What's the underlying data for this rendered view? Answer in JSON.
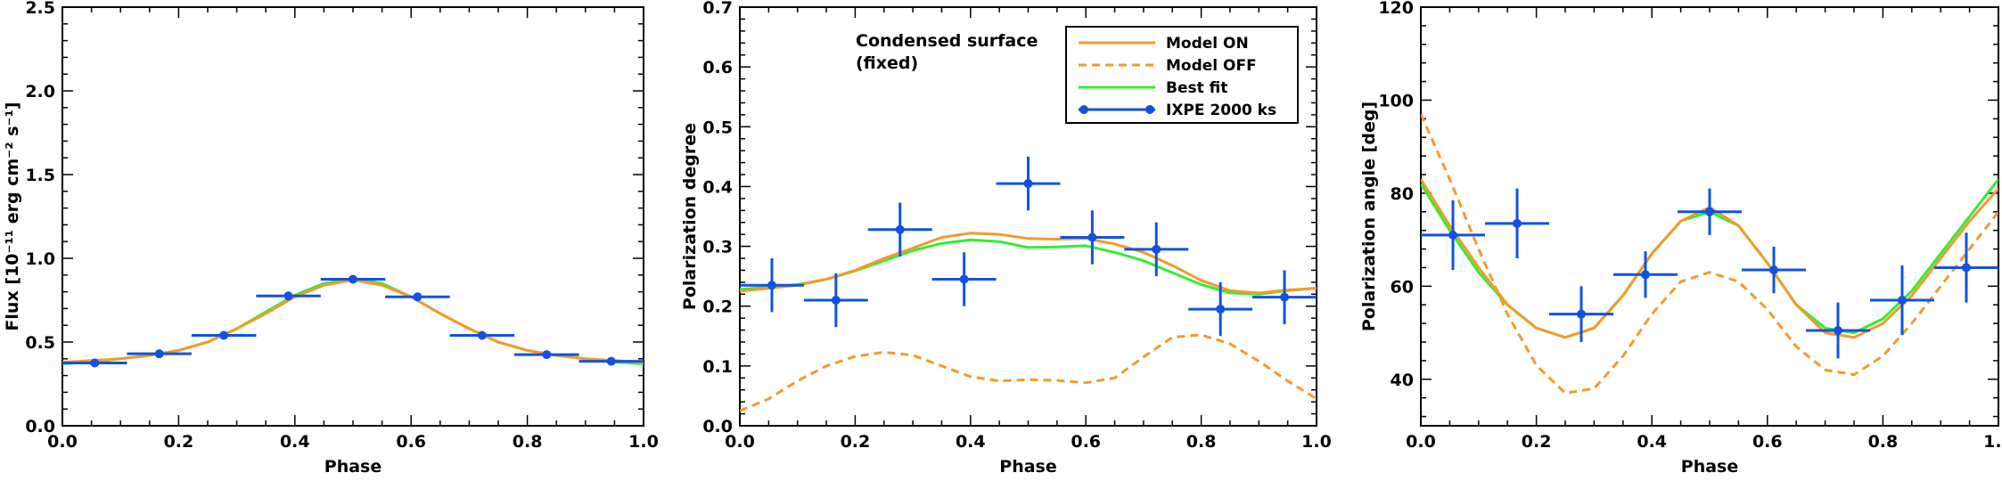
{
  "colors": {
    "model_on": "#F39A2B",
    "model_off": "#F39A2B",
    "best_fit": "#33EE33",
    "ixpe": "#1252E0",
    "axis": "#000000"
  },
  "chart_data": [
    {
      "type": "scatter",
      "xlabel": "Phase",
      "ylabel": "Flux [10⁻¹¹ erg cm⁻² s⁻¹]",
      "xlim": [
        0.0,
        1.0
      ],
      "ylim": [
        0.0,
        2.5
      ],
      "x_ticks": [
        0.0,
        0.2,
        0.4,
        0.6,
        0.8,
        1.0
      ],
      "x_tick_labels": [
        "0.0",
        "0.2",
        "0.4",
        "0.6",
        "0.8",
        "1.0"
      ],
      "y_ticks": [
        0.0,
        0.5,
        1.0,
        1.5,
        2.0,
        2.5
      ],
      "y_tick_labels": [
        "0.0",
        "0.5",
        "1.0",
        "1.5",
        "2.0",
        "2.5"
      ],
      "series": [
        {
          "key": "model_on",
          "style": "solid",
          "x": [
            0.0,
            0.05,
            0.1,
            0.15,
            0.2,
            0.25,
            0.3,
            0.35,
            0.4,
            0.45,
            0.5,
            0.55,
            0.6,
            0.65,
            0.7,
            0.75,
            0.8,
            0.85,
            0.9,
            0.95,
            1.0
          ],
          "y": [
            0.38,
            0.39,
            0.4,
            0.42,
            0.45,
            0.5,
            0.58,
            0.67,
            0.77,
            0.84,
            0.87,
            0.84,
            0.77,
            0.67,
            0.58,
            0.5,
            0.45,
            0.42,
            0.4,
            0.39,
            0.38
          ]
        },
        {
          "key": "best_fit",
          "style": "solid",
          "x": [
            0.0,
            0.05,
            0.1,
            0.15,
            0.2,
            0.25,
            0.3,
            0.35,
            0.4,
            0.45,
            0.5,
            0.55,
            0.6,
            0.65,
            0.7,
            0.75,
            0.8,
            0.85,
            0.9,
            0.95,
            1.0
          ],
          "y": [
            0.37,
            0.38,
            0.4,
            0.42,
            0.45,
            0.5,
            0.58,
            0.68,
            0.78,
            0.85,
            0.88,
            0.85,
            0.77,
            0.67,
            0.58,
            0.5,
            0.45,
            0.42,
            0.4,
            0.38,
            0.37
          ]
        }
      ],
      "points": {
        "key": "ixpe",
        "x": [
          0.0556,
          0.1667,
          0.2778,
          0.3889,
          0.5,
          0.6111,
          0.7222,
          0.8333,
          0.9444
        ],
        "y": [
          0.375,
          0.43,
          0.54,
          0.775,
          0.875,
          0.77,
          0.54,
          0.425,
          0.385
        ],
        "xerr": 0.0556,
        "yerr": [
          0.01,
          0.01,
          0.01,
          0.01,
          0.01,
          0.01,
          0.01,
          0.01,
          0.01
        ]
      }
    },
    {
      "type": "scatter",
      "xlabel": "Phase",
      "ylabel": "Polarization degree",
      "xlim": [
        0.0,
        1.0
      ],
      "ylim": [
        0.0,
        0.7
      ],
      "x_ticks": [
        0.0,
        0.2,
        0.4,
        0.6,
        0.8,
        1.0
      ],
      "x_tick_labels": [
        "0.0",
        "0.2",
        "0.4",
        "0.6",
        "0.8",
        "1.0"
      ],
      "y_ticks": [
        0.0,
        0.1,
        0.2,
        0.3,
        0.4,
        0.5,
        0.6,
        0.7
      ],
      "y_tick_labels": [
        "0.0",
        "0.1",
        "0.2",
        "0.3",
        "0.4",
        "0.5",
        "0.6",
        "0.7"
      ],
      "annotation": [
        "Condensed surface",
        "(fixed)"
      ],
      "legend": {
        "position": "top-right",
        "entries": [
          {
            "key": "model_on",
            "label": "Model ON",
            "style": "solid"
          },
          {
            "key": "model_off",
            "label": "Model OFF",
            "style": "dashed"
          },
          {
            "key": "best_fit",
            "label": "Best fit",
            "style": "solid"
          },
          {
            "key": "ixpe",
            "label": "IXPE 2000 ks",
            "style": "marker"
          }
        ]
      },
      "series": [
        {
          "key": "model_on",
          "style": "solid",
          "x": [
            0.0,
            0.05,
            0.1,
            0.15,
            0.2,
            0.25,
            0.3,
            0.35,
            0.4,
            0.45,
            0.5,
            0.55,
            0.6,
            0.65,
            0.7,
            0.75,
            0.8,
            0.85,
            0.9,
            0.95,
            1.0
          ],
          "y": [
            0.225,
            0.23,
            0.235,
            0.245,
            0.26,
            0.28,
            0.297,
            0.315,
            0.322,
            0.32,
            0.313,
            0.312,
            0.313,
            0.304,
            0.29,
            0.268,
            0.243,
            0.226,
            0.222,
            0.227,
            0.23
          ]
        },
        {
          "key": "model_off",
          "style": "dashed",
          "x": [
            0.0,
            0.05,
            0.1,
            0.15,
            0.2,
            0.25,
            0.3,
            0.35,
            0.4,
            0.45,
            0.5,
            0.55,
            0.6,
            0.65,
            0.7,
            0.75,
            0.8,
            0.85,
            0.9,
            0.95,
            1.0
          ],
          "y": [
            0.025,
            0.045,
            0.075,
            0.1,
            0.116,
            0.123,
            0.118,
            0.1,
            0.082,
            0.075,
            0.077,
            0.076,
            0.072,
            0.08,
            0.115,
            0.148,
            0.152,
            0.137,
            0.108,
            0.075,
            0.045
          ]
        },
        {
          "key": "best_fit",
          "style": "solid",
          "x": [
            0.0,
            0.05,
            0.1,
            0.15,
            0.2,
            0.25,
            0.3,
            0.35,
            0.4,
            0.45,
            0.5,
            0.55,
            0.6,
            0.65,
            0.7,
            0.75,
            0.8,
            0.85,
            0.9,
            0.95,
            1.0
          ],
          "y": [
            0.228,
            0.232,
            0.236,
            0.245,
            0.259,
            0.276,
            0.293,
            0.305,
            0.311,
            0.308,
            0.298,
            0.299,
            0.301,
            0.29,
            0.276,
            0.256,
            0.236,
            0.222,
            0.22,
            0.226,
            0.23
          ]
        }
      ],
      "points": {
        "key": "ixpe",
        "x": [
          0.0556,
          0.1667,
          0.2778,
          0.3889,
          0.5,
          0.6111,
          0.7222,
          0.8333,
          0.9444
        ],
        "y": [
          0.235,
          0.21,
          0.328,
          0.245,
          0.405,
          0.315,
          0.295,
          0.195,
          0.215
        ],
        "xerr": 0.0556,
        "yerr": [
          0.045,
          0.045,
          0.045,
          0.045,
          0.045,
          0.045,
          0.045,
          0.045,
          0.045
        ]
      }
    },
    {
      "type": "scatter",
      "xlabel": "Phase",
      "ylabel": "Polarization angle [deg]",
      "xlim": [
        0.0,
        1.0
      ],
      "ylim": [
        30,
        120
      ],
      "x_ticks": [
        0.0,
        0.2,
        0.4,
        0.6,
        0.8,
        1.0
      ],
      "x_tick_labels": [
        "0.0",
        "0.2",
        "0.4",
        "0.6",
        "0.8",
        "1.0"
      ],
      "y_ticks": [
        40,
        60,
        80,
        100,
        120
      ],
      "y_tick_labels": [
        "40",
        "60",
        "80",
        "100",
        "120"
      ],
      "series": [
        {
          "key": "model_on",
          "style": "solid",
          "x": [
            0.0,
            0.05,
            0.1,
            0.15,
            0.2,
            0.25,
            0.3,
            0.35,
            0.4,
            0.45,
            0.5,
            0.55,
            0.6,
            0.65,
            0.7,
            0.75,
            0.8,
            0.85,
            0.9,
            0.95,
            1.0
          ],
          "y": [
            83,
            73,
            64,
            56,
            51,
            49,
            51,
            58,
            67,
            74,
            77,
            73,
            65,
            56,
            50,
            49,
            52,
            58,
            66,
            74,
            81
          ]
        },
        {
          "key": "model_off",
          "style": "dashed",
          "x": [
            0.0,
            0.05,
            0.1,
            0.15,
            0.2,
            0.25,
            0.3,
            0.35,
            0.4,
            0.45,
            0.5,
            0.55,
            0.6,
            0.65,
            0.7,
            0.75,
            0.8,
            0.85,
            0.9,
            0.95,
            1.0
          ],
          "y": [
            97,
            83,
            68,
            54,
            43,
            37,
            38,
            45,
            54,
            61,
            63,
            61,
            55,
            47,
            42,
            41,
            45,
            52,
            60,
            68,
            76
          ]
        },
        {
          "key": "best_fit",
          "style": "solid",
          "x": [
            0.0,
            0.05,
            0.1,
            0.15,
            0.2,
            0.25,
            0.3,
            0.35,
            0.4,
            0.45,
            0.5,
            0.55,
            0.6,
            0.65,
            0.7,
            0.75,
            0.8,
            0.85,
            0.9,
            0.95,
            1.0
          ],
          "y": [
            82,
            72,
            63,
            56,
            51,
            49,
            51,
            58,
            67,
            74,
            76,
            73,
            65,
            56,
            51,
            50,
            53,
            59,
            67,
            75,
            83
          ]
        }
      ],
      "points": {
        "key": "ixpe",
        "x": [
          0.0556,
          0.1667,
          0.2778,
          0.3889,
          0.5,
          0.6111,
          0.7222,
          0.8333,
          0.9444
        ],
        "y": [
          71,
          73.5,
          54,
          62.5,
          76,
          63.5,
          50.5,
          57,
          64
        ],
        "xerr": 0.0556,
        "yerr": [
          7.5,
          7.5,
          6,
          5,
          5,
          5,
          6,
          7.5,
          7.5
        ]
      }
    }
  ]
}
